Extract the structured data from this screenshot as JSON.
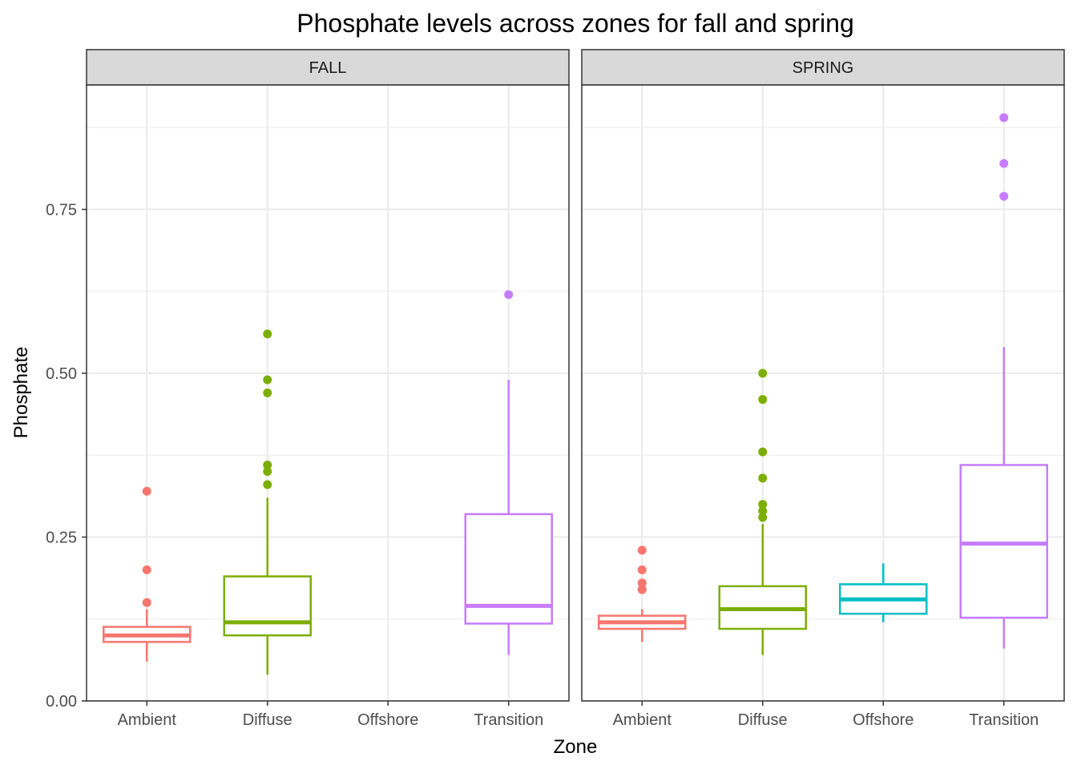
{
  "chart_data": {
    "type": "boxplot",
    "title": "Phosphate levels across zones for fall and spring",
    "xlabel": "Zone",
    "ylabel": "Phosphate",
    "ylim": [
      0,
      0.94
    ],
    "yticks": [
      0.0,
      0.25,
      0.5,
      0.75
    ],
    "ytick_labels": [
      "0.00",
      "0.25",
      "0.50",
      "0.75"
    ],
    "categories": [
      "Ambient",
      "Diffuse",
      "Offshore",
      "Transition"
    ],
    "colors": {
      "Ambient": "#F8766D",
      "Diffuse": "#7CAE00",
      "Offshore": "#00BFC4",
      "Transition": "#C77CFF"
    },
    "grid": true,
    "legend": "none",
    "facets": [
      {
        "label": "FALL",
        "boxes": [
          {
            "zone": "Ambient",
            "lower_whisker": 0.06,
            "q1": 0.09,
            "median": 0.1,
            "q3": 0.113,
            "upper_whisker": 0.14,
            "outliers": [
              0.15,
              0.2,
              0.32
            ]
          },
          {
            "zone": "Diffuse",
            "lower_whisker": 0.04,
            "q1": 0.1,
            "median": 0.12,
            "q3": 0.19,
            "upper_whisker": 0.31,
            "outliers": [
              0.33,
              0.35,
              0.36,
              0.47,
              0.49,
              0.56
            ]
          },
          {
            "zone": "Transition",
            "lower_whisker": 0.07,
            "q1": 0.118,
            "median": 0.145,
            "q3": 0.285,
            "upper_whisker": 0.49,
            "outliers": [
              0.62
            ]
          }
        ]
      },
      {
        "label": "SPRING",
        "boxes": [
          {
            "zone": "Ambient",
            "lower_whisker": 0.09,
            "q1": 0.11,
            "median": 0.12,
            "q3": 0.13,
            "upper_whisker": 0.14,
            "outliers": [
              0.17,
              0.17,
              0.18,
              0.2,
              0.23
            ]
          },
          {
            "zone": "Diffuse",
            "lower_whisker": 0.07,
            "q1": 0.11,
            "median": 0.14,
            "q3": 0.175,
            "upper_whisker": 0.27,
            "outliers": [
              0.28,
              0.29,
              0.3,
              0.34,
              0.38,
              0.46,
              0.5
            ]
          },
          {
            "zone": "Offshore",
            "lower_whisker": 0.12,
            "q1": 0.133,
            "median": 0.155,
            "q3": 0.178,
            "upper_whisker": 0.21,
            "outliers": []
          },
          {
            "zone": "Transition",
            "lower_whisker": 0.08,
            "q1": 0.127,
            "median": 0.24,
            "q3": 0.36,
            "upper_whisker": 0.54,
            "outliers": [
              0.77,
              0.82,
              0.89
            ]
          }
        ]
      }
    ]
  }
}
